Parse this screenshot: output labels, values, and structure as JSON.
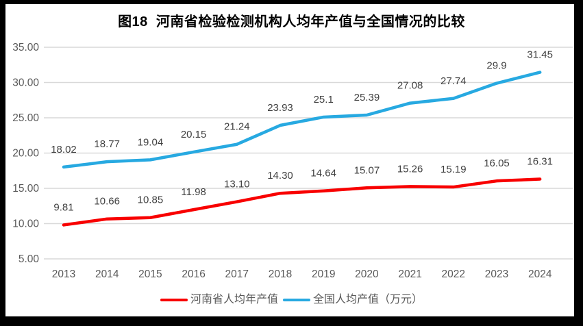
{
  "title": "图18  河南省检验检测机构人均年产值与全国情况的比较",
  "colors": {
    "frame": "#000000",
    "background": "#ffffff",
    "grid": "#d9d9d9",
    "axis_text": "#595959",
    "data_label_text": "#404040",
    "title_text": "#000000",
    "henan_red": "#f80000",
    "national_blue": "#27a9e1"
  },
  "chart_data": {
    "type": "line",
    "title": "图18  河南省检验检测机构人均年产值与全国情况的比较",
    "categories": [
      "2013",
      "2014",
      "2015",
      "2016",
      "2017",
      "2018",
      "2019",
      "2020",
      "2021",
      "2022",
      "2023",
      "2024"
    ],
    "series": [
      {
        "id": "henan",
        "name": "河南省人均年产值",
        "color": "#f80000",
        "values": [
          9.81,
          10.66,
          10.85,
          11.98,
          13.1,
          14.3,
          14.64,
          15.07,
          15.26,
          15.19,
          16.05,
          16.31
        ],
        "labels": [
          "9.81",
          "10.66",
          "10.85",
          "11.98",
          "13.10",
          "14.30",
          "14.64",
          "15.07",
          "15.26",
          "15.19",
          "16.05",
          "16.31"
        ]
      },
      {
        "id": "national",
        "name": "全国人均产值（万元）",
        "color": "#27a9e1",
        "values": [
          18.02,
          18.77,
          19.04,
          20.15,
          21.24,
          23.93,
          25.1,
          25.39,
          27.08,
          27.74,
          29.9,
          31.45
        ],
        "labels": [
          "18.02",
          "18.77",
          "19.04",
          "20.15",
          "21.24",
          "23.93",
          "25.1",
          "25.39",
          "27.08",
          "27.74",
          "29.9",
          "31.45"
        ]
      }
    ],
    "xlabel": "",
    "ylabel": "",
    "ylim": [
      5,
      35
    ],
    "ytick_step": 5,
    "ytick_labels": [
      "35.00",
      "30.00",
      "25.00",
      "20.00",
      "15.00",
      "10.00",
      "5.00"
    ],
    "grid": true,
    "legend_position": "bottom",
    "data_labels_position": "above"
  }
}
